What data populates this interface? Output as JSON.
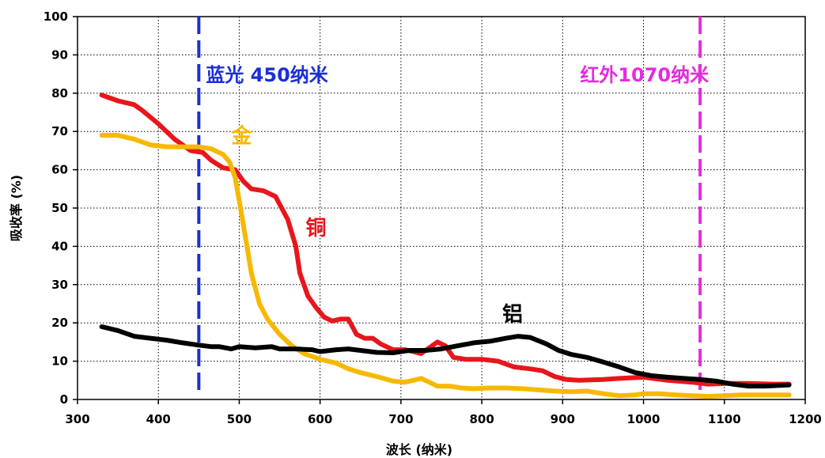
{
  "chart_data": {
    "type": "line",
    "title": "",
    "xlabel": "波长 (纳米)",
    "ylabel": "吸收率 (%)",
    "xlim": [
      300,
      1200
    ],
    "ylim": [
      0,
      100
    ],
    "x_ticks": [
      300,
      400,
      500,
      600,
      700,
      800,
      900,
      1000,
      1100,
      1200
    ],
    "y_ticks": [
      0,
      10,
      20,
      30,
      40,
      50,
      60,
      70,
      80,
      90,
      100
    ],
    "x_tick_labels": [
      "300",
      "400",
      "500",
      "600",
      "700",
      "800",
      "900",
      "1000",
      "1100",
      "1200"
    ],
    "y_tick_labels": [
      "0",
      "10",
      "20",
      "30",
      "40",
      "50",
      "60",
      "70",
      "80",
      "90",
      "100"
    ],
    "grid": "dotted",
    "series": [
      {
        "name": "铜",
        "color": "#e8161c",
        "points": [
          [
            330,
            79.5
          ],
          [
            350,
            78
          ],
          [
            370,
            77
          ],
          [
            380,
            75.5
          ],
          [
            400,
            72
          ],
          [
            420,
            68
          ],
          [
            440,
            65
          ],
          [
            455,
            64.5
          ],
          [
            465,
            62.5
          ],
          [
            480,
            60.5
          ],
          [
            495,
            60
          ],
          [
            505,
            57
          ],
          [
            515,
            55
          ],
          [
            530,
            54.5
          ],
          [
            545,
            53
          ],
          [
            560,
            47
          ],
          [
            570,
            40
          ],
          [
            575,
            33
          ],
          [
            585,
            27
          ],
          [
            595,
            24
          ],
          [
            605,
            21.5
          ],
          [
            615,
            20.5
          ],
          [
            625,
            21
          ],
          [
            635,
            21
          ],
          [
            645,
            17
          ],
          [
            655,
            16
          ],
          [
            665,
            16
          ],
          [
            675,
            14.5
          ],
          [
            690,
            13
          ],
          [
            705,
            13
          ],
          [
            715,
            12.5
          ],
          [
            725,
            12
          ],
          [
            735,
            13.5
          ],
          [
            745,
            15
          ],
          [
            755,
            14
          ],
          [
            765,
            11
          ],
          [
            780,
            10.5
          ],
          [
            800,
            10.5
          ],
          [
            820,
            10
          ],
          [
            840,
            8.5
          ],
          [
            860,
            8
          ],
          [
            875,
            7.5
          ],
          [
            890,
            6
          ],
          [
            905,
            5.2
          ],
          [
            920,
            5
          ],
          [
            950,
            5.2
          ],
          [
            970,
            5.5
          ],
          [
            1000,
            5.8
          ],
          [
            1030,
            5
          ],
          [
            1060,
            4.5
          ],
          [
            1080,
            4
          ],
          [
            1100,
            4.2
          ],
          [
            1130,
            4.2
          ],
          [
            1160,
            4
          ],
          [
            1180,
            4
          ]
        ]
      },
      {
        "name": "金",
        "color": "#f7b900",
        "points": [
          [
            330,
            69
          ],
          [
            350,
            69
          ],
          [
            370,
            68
          ],
          [
            390,
            66.5
          ],
          [
            410,
            66
          ],
          [
            430,
            66
          ],
          [
            450,
            66
          ],
          [
            465,
            65.5
          ],
          [
            480,
            64
          ],
          [
            488,
            62
          ],
          [
            495,
            58
          ],
          [
            500,
            52
          ],
          [
            508,
            42
          ],
          [
            515,
            33
          ],
          [
            525,
            25
          ],
          [
            535,
            21
          ],
          [
            550,
            17
          ],
          [
            565,
            14
          ],
          [
            580,
            12
          ],
          [
            600,
            10.5
          ],
          [
            620,
            9.5
          ],
          [
            635,
            8
          ],
          [
            650,
            7
          ],
          [
            670,
            6
          ],
          [
            690,
            4.8
          ],
          [
            705,
            4.5
          ],
          [
            715,
            5
          ],
          [
            725,
            5.5
          ],
          [
            735,
            4.5
          ],
          [
            745,
            3.5
          ],
          [
            760,
            3.5
          ],
          [
            775,
            3
          ],
          [
            790,
            2.8
          ],
          [
            810,
            3
          ],
          [
            830,
            3
          ],
          [
            850,
            2.8
          ],
          [
            870,
            2.5
          ],
          [
            890,
            2.2
          ],
          [
            910,
            2
          ],
          [
            930,
            2.2
          ],
          [
            950,
            1.5
          ],
          [
            970,
            1
          ],
          [
            990,
            1.2
          ],
          [
            1000,
            1.5
          ],
          [
            1020,
            1.5
          ],
          [
            1040,
            1.2
          ],
          [
            1060,
            1
          ],
          [
            1080,
            0.8
          ],
          [
            1100,
            1
          ],
          [
            1120,
            1.2
          ],
          [
            1150,
            1.2
          ],
          [
            1180,
            1.2
          ]
        ]
      },
      {
        "name": "铝",
        "color": "#000000",
        "points": [
          [
            330,
            19
          ],
          [
            350,
            18
          ],
          [
            370,
            16.5
          ],
          [
            390,
            16
          ],
          [
            410,
            15.5
          ],
          [
            430,
            14.8
          ],
          [
            450,
            14.2
          ],
          [
            465,
            13.8
          ],
          [
            475,
            13.8
          ],
          [
            490,
            13.2
          ],
          [
            500,
            13.8
          ],
          [
            520,
            13.5
          ],
          [
            540,
            13.8
          ],
          [
            550,
            13.2
          ],
          [
            570,
            13.2
          ],
          [
            590,
            13
          ],
          [
            600,
            12.5
          ],
          [
            620,
            13
          ],
          [
            635,
            13.2
          ],
          [
            650,
            12.8
          ],
          [
            670,
            12.3
          ],
          [
            690,
            12.2
          ],
          [
            710,
            12.8
          ],
          [
            730,
            12.8
          ],
          [
            750,
            13.2
          ],
          [
            770,
            14
          ],
          [
            790,
            14.8
          ],
          [
            810,
            15.2
          ],
          [
            830,
            16
          ],
          [
            845,
            16.5
          ],
          [
            860,
            16.2
          ],
          [
            880,
            14.5
          ],
          [
            895,
            12.8
          ],
          [
            910,
            11.8
          ],
          [
            930,
            11
          ],
          [
            950,
            9.8
          ],
          [
            970,
            8.5
          ],
          [
            990,
            7
          ],
          [
            1010,
            6.2
          ],
          [
            1030,
            5.8
          ],
          [
            1050,
            5.5
          ],
          [
            1070,
            5.2
          ],
          [
            1090,
            4.8
          ],
          [
            1110,
            4
          ],
          [
            1130,
            3.5
          ],
          [
            1150,
            3.5
          ],
          [
            1180,
            3.8
          ]
        ]
      }
    ],
    "reference_lines": [
      {
        "x": 450,
        "color": "#1b2fd6",
        "style": "dashed",
        "label": "蓝光 450纳米"
      },
      {
        "x": 1070,
        "color": "#e52cdd",
        "style": "dashed",
        "label": "红外1070纳米"
      }
    ],
    "annotations": [
      {
        "text": "金",
        "x": 503,
        "y": 67,
        "color": "#f7b900"
      },
      {
        "text": "铜",
        "x": 595,
        "y": 43,
        "color": "#e8161c"
      },
      {
        "text": "铝",
        "x": 838,
        "y": 20.5,
        "color": "#000000"
      }
    ]
  }
}
